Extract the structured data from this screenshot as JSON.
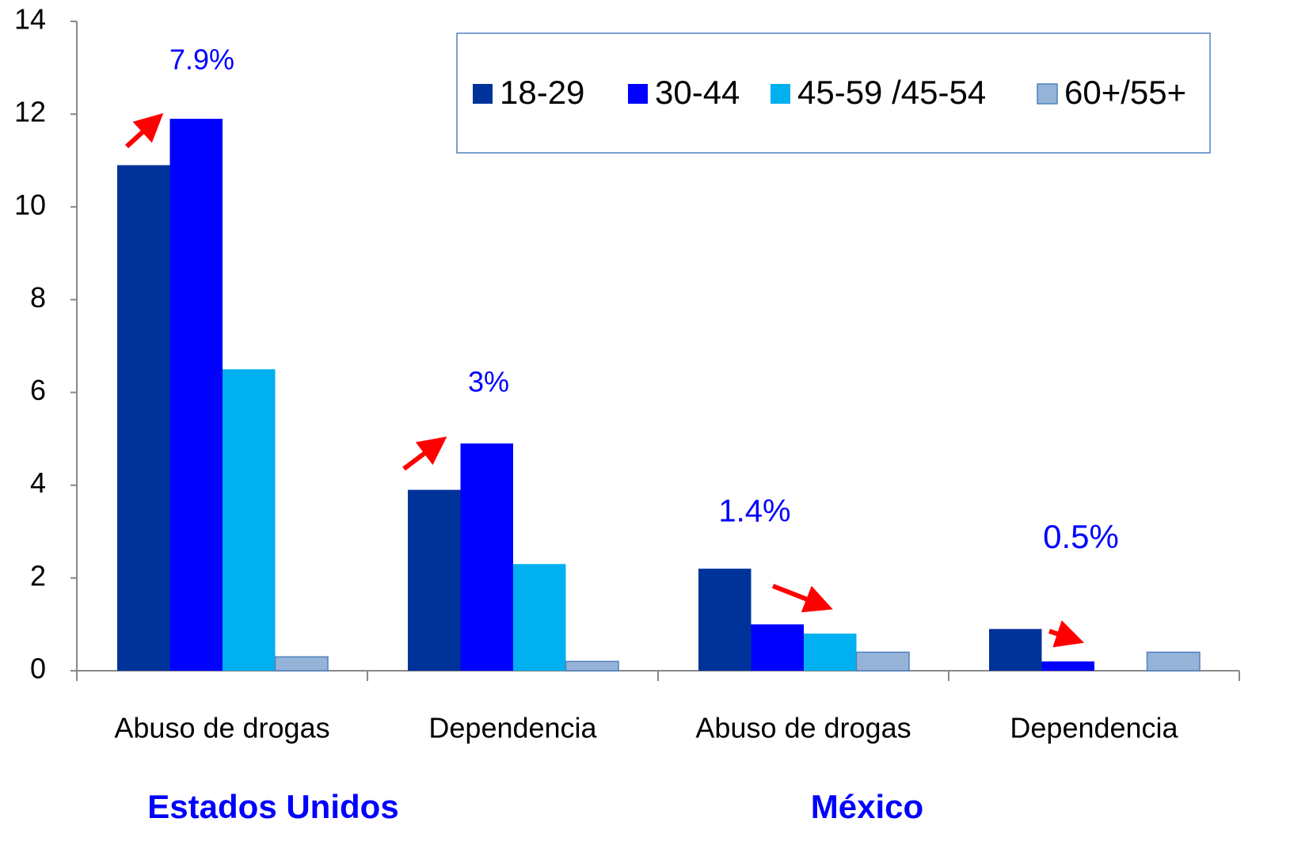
{
  "chart_data": {
    "type": "bar",
    "categories": [
      "Abuso de drogas",
      "Dependencia",
      "Abuso de drogas",
      "Dependencia"
    ],
    "series": [
      {
        "name": "18-29",
        "color": "#003399",
        "values": [
          10.9,
          3.9,
          2.2,
          0.9
        ]
      },
      {
        "name": "30-44",
        "color": "#0000ff",
        "values": [
          11.9,
          4.9,
          1.0,
          0.2
        ]
      },
      {
        "name": "45-59 /45-54",
        "color": "#00b0f0",
        "values": [
          6.5,
          2.3,
          0.8,
          null
        ]
      },
      {
        "name": "60+/55+",
        "color": "#95b3d7",
        "values": [
          0.3,
          0.2,
          0.4,
          0.4
        ]
      }
    ],
    "ylim": [
      0,
      14
    ],
    "yticks": [
      0,
      2,
      4,
      6,
      8,
      10,
      12,
      14
    ],
    "annotations": [
      "7.9%",
      "3%",
      "1.4%",
      "0.5%"
    ],
    "group_labels": [
      "Estados Unidos",
      "México"
    ],
    "legend": "top-right",
    "grid": false
  }
}
